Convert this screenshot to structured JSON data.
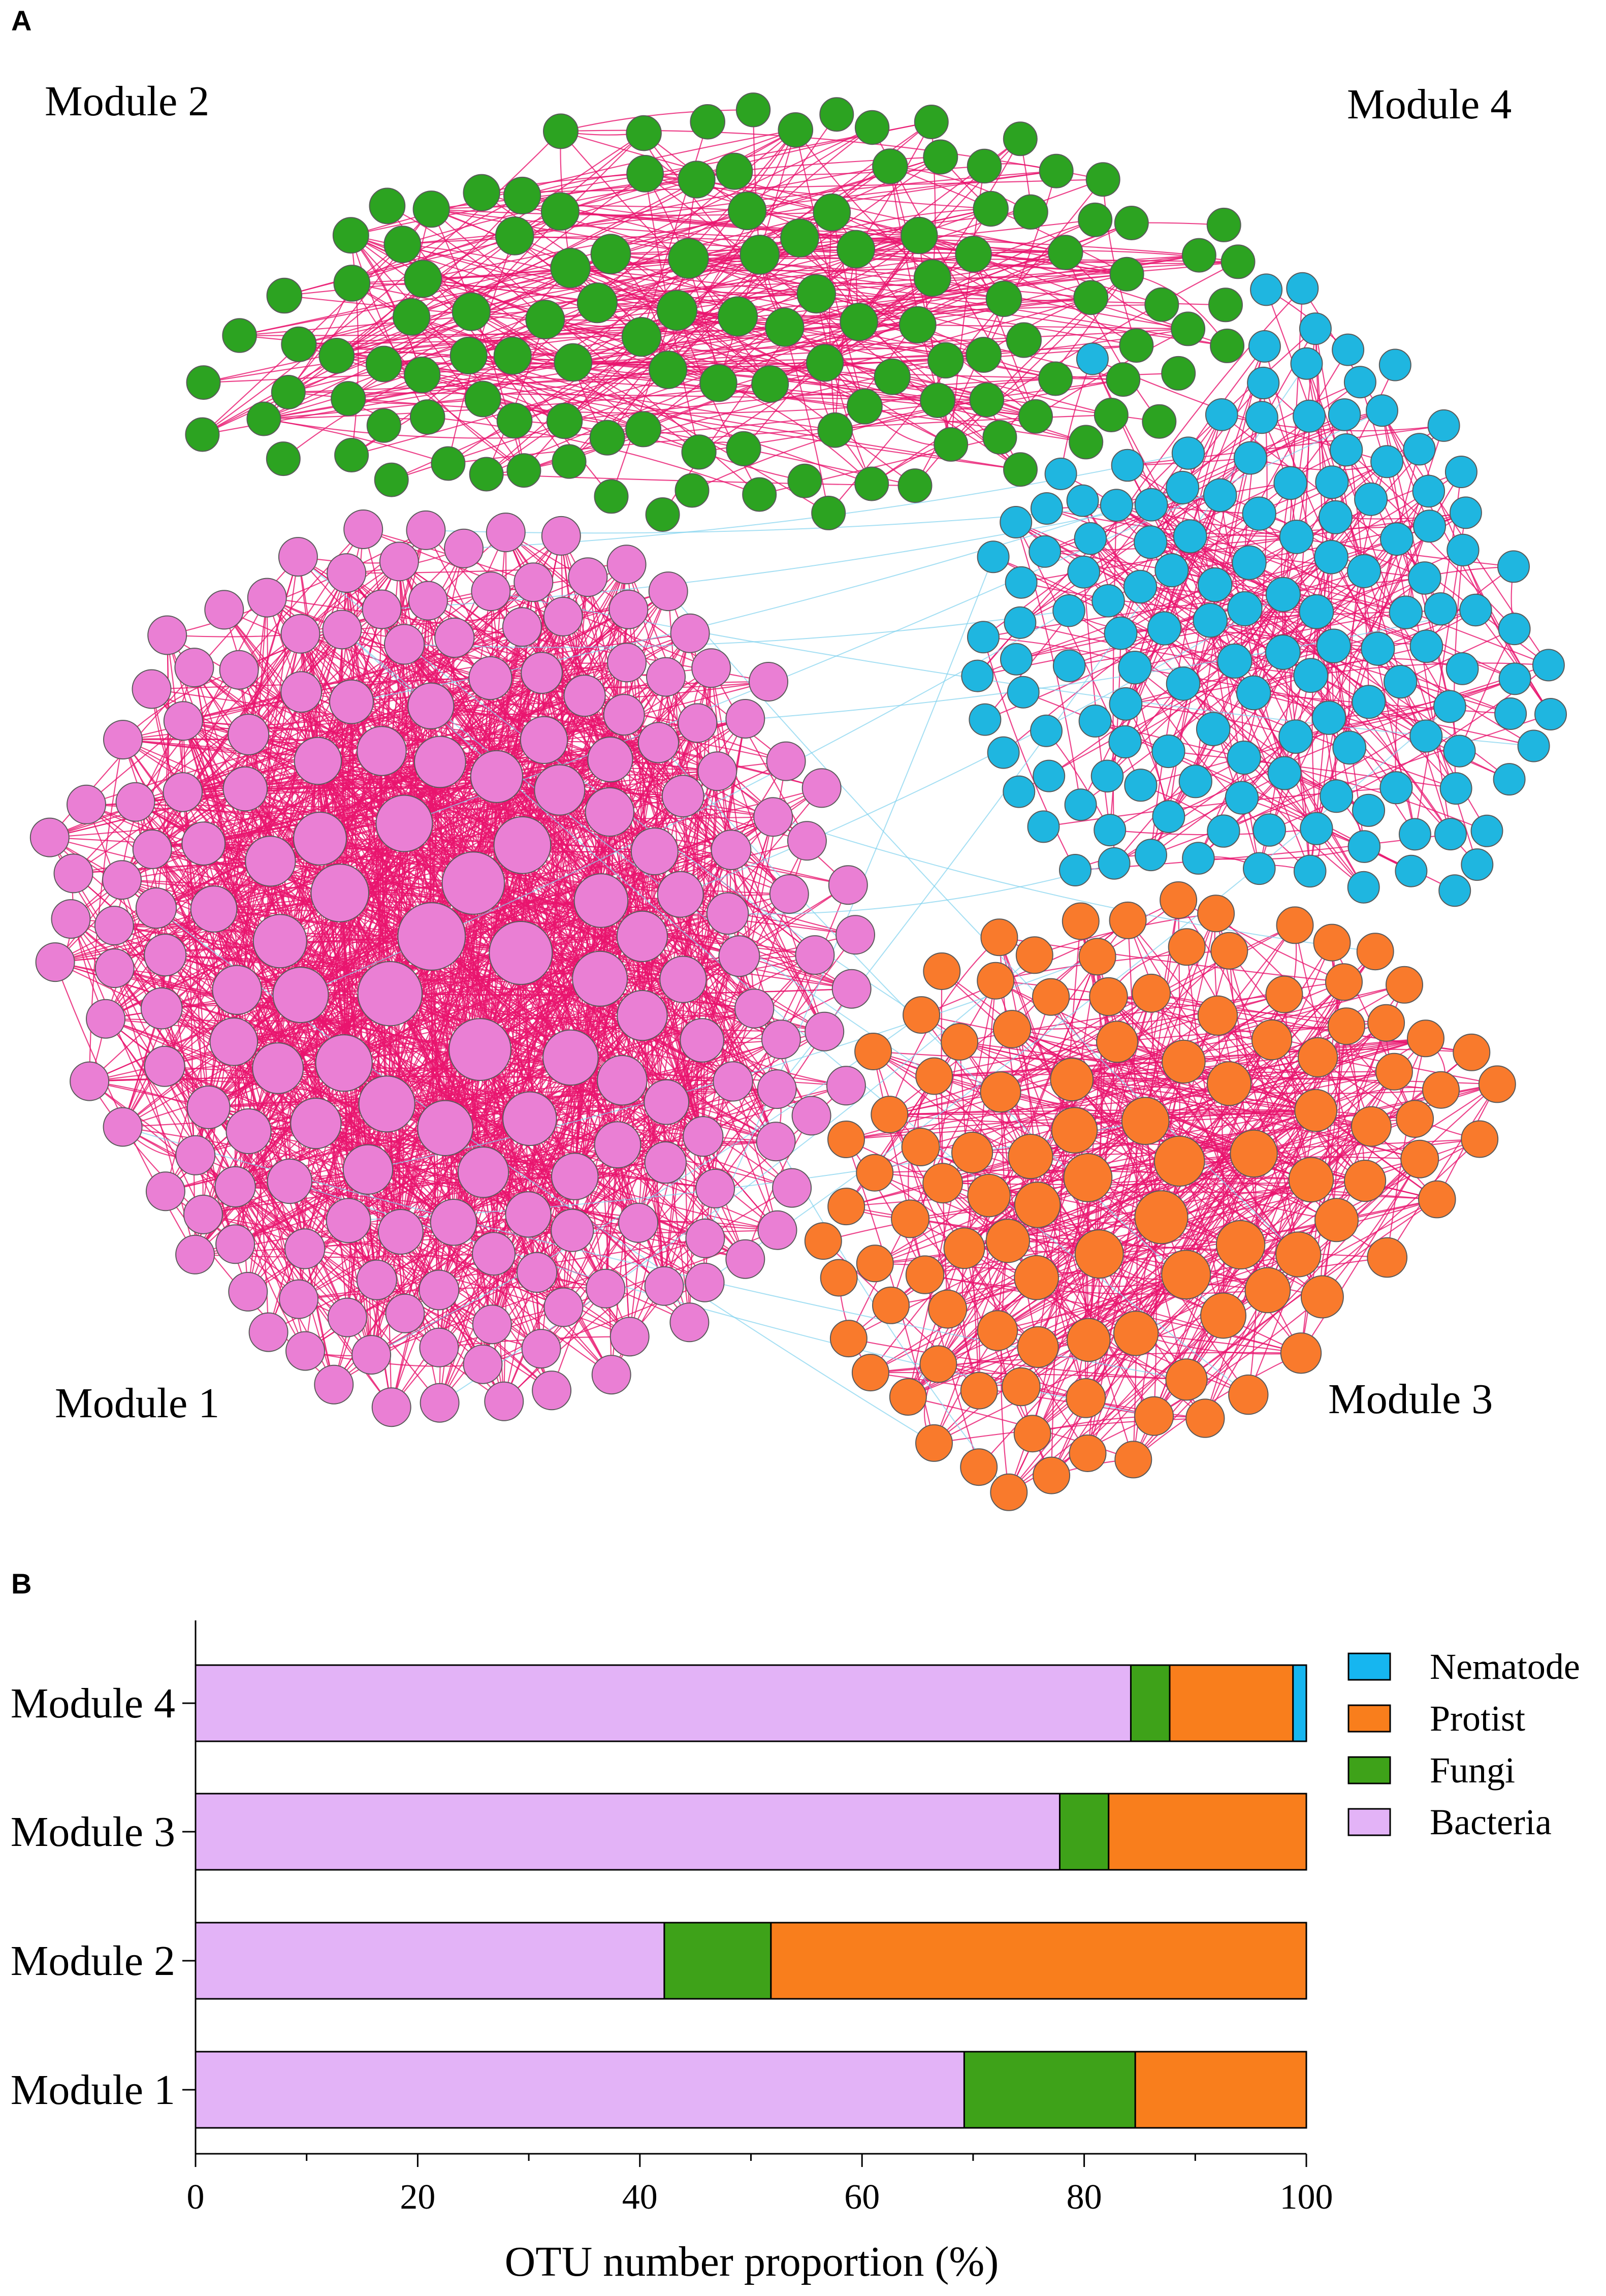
{
  "panel_a": {
    "label": "A",
    "modules": [
      {
        "name": "Module 1",
        "color": "#ea7fd4"
      },
      {
        "name": "Module 2",
        "color": "#2ca321"
      },
      {
        "name": "Module 3",
        "color": "#f97a2c"
      },
      {
        "name": "Module 4",
        "color": "#1fb6e0"
      }
    ],
    "edge_color": "#e8146e",
    "inter_edge_color": "#7fd2ee",
    "node_stroke": "#5a5a5a"
  },
  "panel_b": {
    "label": "B"
  },
  "chart_data": {
    "type": "bar",
    "orientation": "horizontal",
    "stacked": true,
    "categories": [
      "Module 1",
      "Module 2",
      "Module 3",
      "Module 4"
    ],
    "series": [
      {
        "name": "Bacteria",
        "color": "#e3b3f7",
        "values": [
          69.2,
          42.2,
          77.8,
          84.2
        ]
      },
      {
        "name": "Fungi",
        "color": "#3ea219",
        "values": [
          15.4,
          9.6,
          4.4,
          3.5
        ]
      },
      {
        "name": "Protist",
        "color": "#f97e1c",
        "values": [
          15.4,
          48.2,
          17.8,
          11.1
        ]
      },
      {
        "name": "Nematode",
        "color": "#16b6f0",
        "values": [
          0,
          0,
          0,
          1.2
        ]
      }
    ],
    "legend_order": [
      "Nematode",
      "Protist",
      "Fungi",
      "Bacteria"
    ],
    "xlabel": "OTU number proportion (%)",
    "xlim": [
      0,
      100
    ],
    "xticks": [
      0,
      20,
      40,
      60,
      80,
      100
    ],
    "legend_position": "top-right"
  }
}
